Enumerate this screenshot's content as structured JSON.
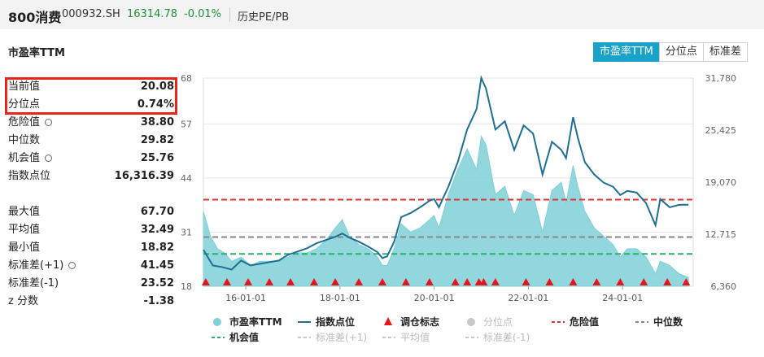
{
  "header": {
    "name": "800消费",
    "code": "000932.SH",
    "price": "16314.78",
    "change": "-0.01%",
    "history_link": "历史PE/PB"
  },
  "section_title": "市盈率TTM",
  "tabs": [
    {
      "label": "市盈率TTM",
      "active": true
    },
    {
      "label": "分位点",
      "active": false
    },
    {
      "label": "标准差",
      "active": false
    }
  ],
  "stats_top": [
    {
      "label": "当前值",
      "value": "20.08",
      "gear": false
    },
    {
      "label": "分位点",
      "value": "0.74%",
      "gear": false
    },
    {
      "label": "危险值",
      "value": "38.80",
      "gear": true
    },
    {
      "label": "中位数",
      "value": "29.82",
      "gear": false
    },
    {
      "label": "机会值",
      "value": "25.76",
      "gear": true
    },
    {
      "label": "指数点位",
      "value": "16,316.39",
      "gear": false
    }
  ],
  "stats_bottom": [
    {
      "label": "最大值",
      "value": "67.70",
      "gear": false
    },
    {
      "label": "平均值",
      "value": "32.49",
      "gear": false
    },
    {
      "label": "最小值",
      "value": "18.82",
      "gear": false
    },
    {
      "label": "标准差(+1)",
      "value": "41.45",
      "gear": true
    },
    {
      "label": "标准差(-1)",
      "value": "23.52",
      "gear": false
    },
    {
      "label": "z 分数",
      "value": "-1.38",
      "gear": false
    }
  ],
  "colors": {
    "pe_fill": "#7fd0d8",
    "index_line": "#1f6f94",
    "danger": "#e03030",
    "median": "#888888",
    "opportunity": "#2bb06a",
    "marker": "#e8141b",
    "up": "#1f8f3a"
  },
  "chart_data": {
    "type": "area",
    "x_ticks": [
      "16-01-01",
      "18-01-01",
      "20-01-01",
      "22-01-01",
      "24-01-01"
    ],
    "x_domain": [
      2015.1,
      2025.5
    ],
    "left_axis": {
      "ticks": [
        "18",
        "31",
        "44",
        "57",
        "68"
      ],
      "ylim": [
        18,
        68
      ]
    },
    "right_axis": {
      "ticks": [
        "6,360",
        "12,715",
        "19,070",
        "25,425",
        "31,780"
      ],
      "ylim": [
        6360,
        31780
      ]
    },
    "series": [
      {
        "name": "市盈率TTM",
        "kind": "area",
        "points": [
          [
            2015.1,
            36
          ],
          [
            2015.25,
            30
          ],
          [
            2015.4,
            27
          ],
          [
            2015.55,
            26
          ],
          [
            2015.7,
            24
          ],
          [
            2015.9,
            25
          ],
          [
            2016.1,
            23
          ],
          [
            2016.3,
            24
          ],
          [
            2016.5,
            24
          ],
          [
            2016.7,
            24
          ],
          [
            2016.9,
            25
          ],
          [
            2017.1,
            26
          ],
          [
            2017.3,
            26
          ],
          [
            2017.5,
            27
          ],
          [
            2017.7,
            29
          ],
          [
            2017.9,
            32
          ],
          [
            2018.05,
            34
          ],
          [
            2018.2,
            30
          ],
          [
            2018.4,
            28
          ],
          [
            2018.6,
            27
          ],
          [
            2018.8,
            25
          ],
          [
            2018.9,
            23
          ],
          [
            2019.0,
            23
          ],
          [
            2019.15,
            27
          ],
          [
            2019.3,
            33
          ],
          [
            2019.5,
            31
          ],
          [
            2019.7,
            32
          ],
          [
            2019.9,
            34
          ],
          [
            2020.0,
            35
          ],
          [
            2020.1,
            32
          ],
          [
            2020.3,
            40
          ],
          [
            2020.5,
            46
          ],
          [
            2020.7,
            51
          ],
          [
            2020.9,
            46
          ],
          [
            2021.0,
            54
          ],
          [
            2021.1,
            52
          ],
          [
            2021.3,
            40
          ],
          [
            2021.5,
            42
          ],
          [
            2021.7,
            35
          ],
          [
            2021.9,
            41
          ],
          [
            2022.1,
            40
          ],
          [
            2022.3,
            31
          ],
          [
            2022.5,
            41
          ],
          [
            2022.7,
            43
          ],
          [
            2022.8,
            38
          ],
          [
            2022.95,
            47
          ],
          [
            2023.05,
            42
          ],
          [
            2023.2,
            36
          ],
          [
            2023.4,
            32
          ],
          [
            2023.6,
            30
          ],
          [
            2023.8,
            28
          ],
          [
            2023.95,
            25
          ],
          [
            2024.1,
            27
          ],
          [
            2024.3,
            27
          ],
          [
            2024.5,
            25
          ],
          [
            2024.7,
            21
          ],
          [
            2024.8,
            24
          ],
          [
            2025.0,
            23
          ],
          [
            2025.2,
            21
          ],
          [
            2025.4,
            20.1
          ]
        ]
      },
      {
        "name": "指数点位",
        "kind": "line",
        "points": [
          [
            2015.1,
            10800
          ],
          [
            2015.3,
            8900
          ],
          [
            2015.5,
            8700
          ],
          [
            2015.7,
            8400
          ],
          [
            2015.9,
            9500
          ],
          [
            2016.1,
            8900
          ],
          [
            2016.3,
            9100
          ],
          [
            2016.5,
            9300
          ],
          [
            2016.7,
            9500
          ],
          [
            2016.9,
            10200
          ],
          [
            2017.1,
            10600
          ],
          [
            2017.3,
            11000
          ],
          [
            2017.5,
            11600
          ],
          [
            2017.7,
            12000
          ],
          [
            2017.9,
            12400
          ],
          [
            2018.05,
            12800
          ],
          [
            2018.2,
            12300
          ],
          [
            2018.4,
            11800
          ],
          [
            2018.6,
            11200
          ],
          [
            2018.8,
            10500
          ],
          [
            2018.9,
            9800
          ],
          [
            2019.0,
            10000
          ],
          [
            2019.15,
            11800
          ],
          [
            2019.3,
            14800
          ],
          [
            2019.5,
            15300
          ],
          [
            2019.7,
            16000
          ],
          [
            2019.9,
            16800
          ],
          [
            2020.0,
            17000
          ],
          [
            2020.1,
            16000
          ],
          [
            2020.3,
            18500
          ],
          [
            2020.5,
            21500
          ],
          [
            2020.7,
            25500
          ],
          [
            2020.9,
            28000
          ],
          [
            2021.0,
            31800
          ],
          [
            2021.1,
            30500
          ],
          [
            2021.3,
            25500
          ],
          [
            2021.5,
            26500
          ],
          [
            2021.7,
            23000
          ],
          [
            2021.9,
            26000
          ],
          [
            2022.1,
            25000
          ],
          [
            2022.3,
            20000
          ],
          [
            2022.5,
            24000
          ],
          [
            2022.7,
            23000
          ],
          [
            2022.8,
            22000
          ],
          [
            2022.95,
            27000
          ],
          [
            2023.05,
            24500
          ],
          [
            2023.2,
            21500
          ],
          [
            2023.4,
            20000
          ],
          [
            2023.6,
            19000
          ],
          [
            2023.8,
            18500
          ],
          [
            2023.95,
            17500
          ],
          [
            2024.1,
            18000
          ],
          [
            2024.3,
            17800
          ],
          [
            2024.5,
            16500
          ],
          [
            2024.7,
            13800
          ],
          [
            2024.8,
            17000
          ],
          [
            2025.0,
            16000
          ],
          [
            2025.2,
            16300
          ],
          [
            2025.4,
            16316
          ]
        ]
      },
      {
        "name": "危险值",
        "kind": "hline",
        "value": 38.8
      },
      {
        "name": "中位数",
        "kind": "hline",
        "value": 29.82
      },
      {
        "name": "机会值",
        "kind": "hline",
        "value": 25.76
      }
    ],
    "rebalance_markers": [
      2015.15,
      2015.6,
      2016.05,
      2016.5,
      2016.95,
      2017.45,
      2017.9,
      2018.4,
      2018.9,
      2019.4,
      2019.9,
      2020.45,
      2020.7,
      2020.95,
      2021.05,
      2021.3,
      2021.95,
      2022.45,
      2022.95,
      2023.45,
      2023.95,
      2024.45,
      2024.95,
      2025.35
    ],
    "legend": [
      {
        "label": "市盈率TTM",
        "kind": "dot",
        "color": "#7fd0d8"
      },
      {
        "label": "指数点位",
        "kind": "line",
        "color": "#1f6f94"
      },
      {
        "label": "调仓标志",
        "kind": "triangle",
        "color": "#e8141b"
      },
      {
        "label": "分位点",
        "kind": "dot",
        "color": "#c8c8c8",
        "muted": true
      },
      {
        "label": "危险值",
        "kind": "dash",
        "color": "#e03030"
      },
      {
        "label": "中位数",
        "kind": "dash",
        "color": "#888888"
      },
      {
        "label": "机会值",
        "kind": "dash",
        "color": "#2bb06a"
      },
      {
        "label": "标准差(+1)",
        "kind": "dash",
        "color": "#c8c8c8",
        "muted": true
      },
      {
        "label": "平均值",
        "kind": "dash",
        "color": "#c8c8c8",
        "muted": true
      },
      {
        "label": "标准差(-1)",
        "kind": "dash",
        "color": "#c8c8c8",
        "muted": true
      }
    ]
  }
}
